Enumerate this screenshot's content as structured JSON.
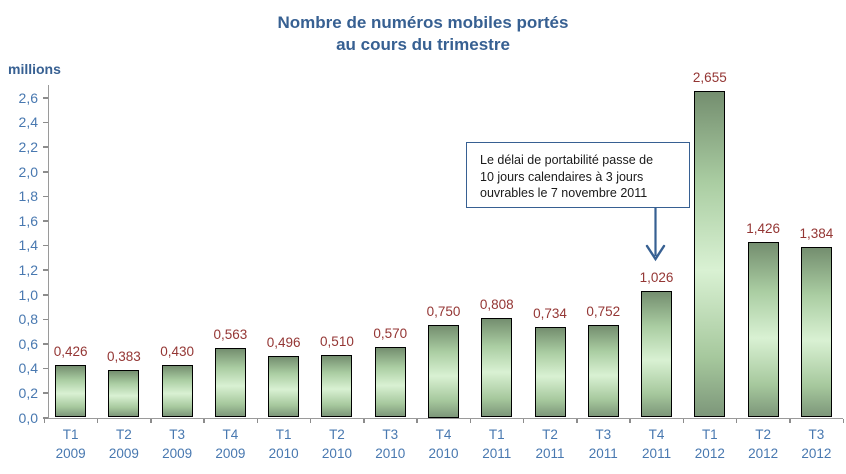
{
  "title": {
    "line1": "Nombre de numéros mobiles portés",
    "line2": "au cours du trimestre"
  },
  "y_axis": {
    "unit_label": "millions",
    "tick_labels": [
      "0,0",
      "0,2",
      "0,4",
      "0,6",
      "0,8",
      "1,0",
      "1,2",
      "1,4",
      "1,6",
      "1,8",
      "2,0",
      "2,2",
      "2,4",
      "2,6"
    ]
  },
  "annotation": {
    "line1": "Le délai de portabilité passe de",
    "line2": "10 jours calendaires à 3 jours",
    "line3": "ouvrables le 7 novembre 2011",
    "target_category": "T4 2011"
  },
  "chart_data": {
    "type": "bar",
    "title": "Nombre de numéros mobiles portés au cours du trimestre",
    "xlabel": "",
    "ylabel": "millions",
    "ylim": [
      0,
      2.6
    ],
    "y_tick_step": 0.2,
    "grid": false,
    "legend": "none",
    "categories": [
      "T1 2009",
      "T2 2009",
      "T3 2009",
      "T4 2009",
      "T1 2010",
      "T2 2010",
      "T3 2010",
      "T4 2010",
      "T1 2011",
      "T2 2011",
      "T3 2011",
      "T4 2011",
      "T1 2012",
      "T2 2012",
      "T3 2012"
    ],
    "category_lines": [
      [
        "T1",
        "2009"
      ],
      [
        "T2",
        "2009"
      ],
      [
        "T3",
        "2009"
      ],
      [
        "T4",
        "2009"
      ],
      [
        "T1",
        "2010"
      ],
      [
        "T2",
        "2010"
      ],
      [
        "T3",
        "2010"
      ],
      [
        "T4",
        "2010"
      ],
      [
        "T1",
        "2011"
      ],
      [
        "T2",
        "2011"
      ],
      [
        "T3",
        "2011"
      ],
      [
        "T4",
        "2011"
      ],
      [
        "T1",
        "2012"
      ],
      [
        "T2",
        "2012"
      ],
      [
        "T3",
        "2012"
      ]
    ],
    "values": [
      0.426,
      0.383,
      0.43,
      0.563,
      0.496,
      0.51,
      0.57,
      0.75,
      0.808,
      0.734,
      0.752,
      1.026,
      2.655,
      1.426,
      1.384
    ],
    "value_labels": [
      "0,426",
      "0,383",
      "0,430",
      "0,563",
      "0,496",
      "0,510",
      "0,570",
      "0,750",
      "0,808",
      "0,734",
      "0,752",
      "1,026",
      "2,655",
      "1,426",
      "1,384"
    ]
  },
  "colors": {
    "title": "#376092",
    "axis_labels": "#4878b0",
    "value_labels": "#943634",
    "axis_line": "#9a9a9a",
    "bar_border": "#000000",
    "bar_gradient_top": "#748e6f",
    "bar_gradient_light": "#d9f1d3",
    "bar_gradient_bottom": "#7d977a",
    "annotation_border": "#376092",
    "annotation_text": "#1a1a1a",
    "arrow": "#376092"
  }
}
